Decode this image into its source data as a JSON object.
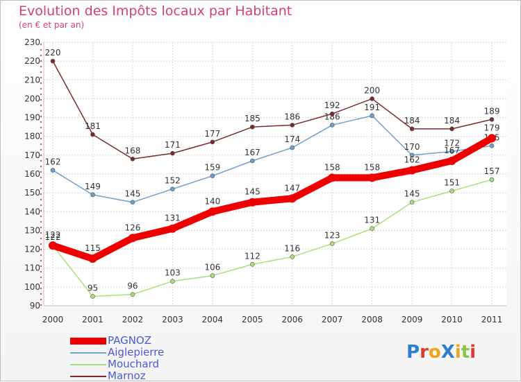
{
  "header": {
    "title": "Evolution des Impôts locaux par Habitant",
    "subtitle": "(en € et par an)"
  },
  "logo": {
    "text": "ProXiti"
  },
  "chart_data": {
    "type": "line",
    "title": "Evolution des Impôts locaux par Habitant",
    "subtitle": "(en € et par an)",
    "xlabel": "",
    "ylabel": "",
    "categories": [
      "2000",
      "2001",
      "2002",
      "2003",
      "2004",
      "2005",
      "2006",
      "2007",
      "2008",
      "2009",
      "2010",
      "2011"
    ],
    "ylim": [
      90,
      230
    ],
    "yticks": [
      90,
      100,
      110,
      120,
      130,
      140,
      150,
      160,
      170,
      180,
      190,
      200,
      210,
      220,
      230
    ],
    "grid": true,
    "legend_position": "bottom-left",
    "series": [
      {
        "name": "PAGNOZ",
        "color": "#ee0000",
        "values": [
          122,
          115,
          126,
          131,
          140,
          145,
          147,
          158,
          158,
          162,
          167,
          179
        ]
      },
      {
        "name": "Aiglepierre",
        "color": "#6e9fce",
        "values": [
          162,
          149,
          145,
          152,
          159,
          167,
          174,
          186,
          191,
          170,
          172,
          175
        ]
      },
      {
        "name": "Mouchard",
        "color": "#a9de7c",
        "values": [
          122,
          95,
          96,
          103,
          106,
          112,
          116,
          123,
          131,
          145,
          151,
          157
        ]
      },
      {
        "name": "Marnoz",
        "color": "#7a2a2a",
        "values": [
          220,
          181,
          168,
          171,
          177,
          185,
          186,
          192,
          200,
          184,
          184,
          189
        ]
      }
    ]
  }
}
